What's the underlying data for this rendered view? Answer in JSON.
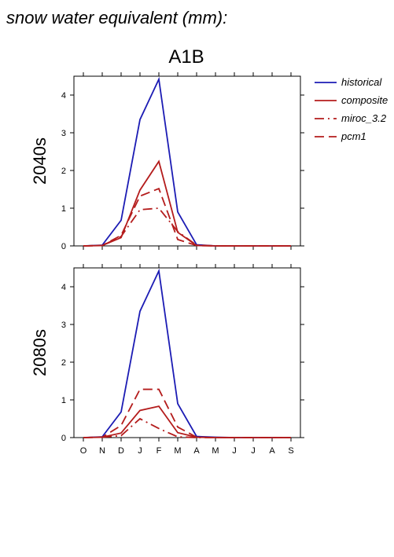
{
  "figure": {
    "heading": "snow water equivalent (mm):",
    "scenario": "A1B"
  },
  "colors": {
    "historical": "#1c1cb4",
    "composite": "#b41c1c",
    "miroc": "#b41c1c",
    "pcm1": "#b41c1c"
  },
  "legend": {
    "placement": "top-right, outside plots",
    "entries": [
      {
        "key": "historical",
        "label": "historical",
        "style": "solid",
        "color": "#1c1cb4"
      },
      {
        "key": "composite",
        "label": "composite",
        "style": "solid",
        "color": "#b41c1c"
      },
      {
        "key": "miroc",
        "label": "miroc_3.2",
        "style": "dashdot",
        "color": "#b41c1c"
      },
      {
        "key": "pcm1",
        "label": "pcm1",
        "style": "dashed",
        "color": "#b41c1c"
      }
    ]
  },
  "chart_data": [
    {
      "type": "line",
      "title": "A1B",
      "ylabel": "2040s",
      "categories": [
        "O",
        "N",
        "D",
        "J",
        "F",
        "M",
        "A",
        "M",
        "J",
        "J",
        "A",
        "S"
      ],
      "ylim": [
        0,
        4.5
      ],
      "yticks": [
        0,
        1,
        2,
        3,
        4
      ],
      "grid": false,
      "series": [
        {
          "name": "historical",
          "style": "solid",
          "color": "#1c1cb4",
          "values": [
            0,
            0.02,
            0.68,
            3.35,
            4.42,
            0.9,
            0.03,
            0,
            0,
            0,
            0,
            0
          ]
        },
        {
          "name": "composite",
          "style": "solid",
          "color": "#b41c1c",
          "values": [
            0,
            0.01,
            0.22,
            1.48,
            2.24,
            0.36,
            0.01,
            0,
            0,
            0,
            0,
            0
          ]
        },
        {
          "name": "miroc_3.2",
          "style": "dashdot",
          "color": "#b41c1c",
          "values": [
            0,
            0.01,
            0.25,
            0.96,
            1.0,
            0.38,
            0.02,
            0,
            0,
            0,
            0,
            0
          ]
        },
        {
          "name": "pcm1",
          "style": "dashed",
          "color": "#b41c1c",
          "values": [
            0,
            0.01,
            0.28,
            1.32,
            1.52,
            0.17,
            0.01,
            0,
            0,
            0,
            0,
            0
          ]
        }
      ]
    },
    {
      "type": "line",
      "title": "",
      "ylabel": "2080s",
      "categories": [
        "O",
        "N",
        "D",
        "J",
        "F",
        "M",
        "A",
        "M",
        "J",
        "J",
        "A",
        "S"
      ],
      "ylim": [
        0,
        4.5
      ],
      "yticks": [
        0,
        1,
        2,
        3,
        4
      ],
      "grid": false,
      "series": [
        {
          "name": "historical",
          "style": "solid",
          "color": "#1c1cb4",
          "values": [
            0,
            0.02,
            0.68,
            3.35,
            4.42,
            0.9,
            0.03,
            0.01,
            0,
            0,
            0,
            0
          ]
        },
        {
          "name": "composite",
          "style": "solid",
          "color": "#b41c1c",
          "values": [
            0,
            0.01,
            0.12,
            0.72,
            0.83,
            0.13,
            0.01,
            0,
            0,
            0,
            0,
            0
          ]
        },
        {
          "name": "miroc_3.2",
          "style": "dashdot",
          "color": "#b41c1c",
          "values": [
            0,
            0.01,
            0.05,
            0.5,
            0.24,
            0.02,
            0,
            0,
            0,
            0,
            0,
            0
          ]
        },
        {
          "name": "pcm1",
          "style": "dashed",
          "color": "#b41c1c",
          "values": [
            0,
            0.01,
            0.32,
            1.28,
            1.28,
            0.28,
            0.01,
            0,
            0,
            0,
            0,
            0
          ]
        }
      ]
    }
  ]
}
